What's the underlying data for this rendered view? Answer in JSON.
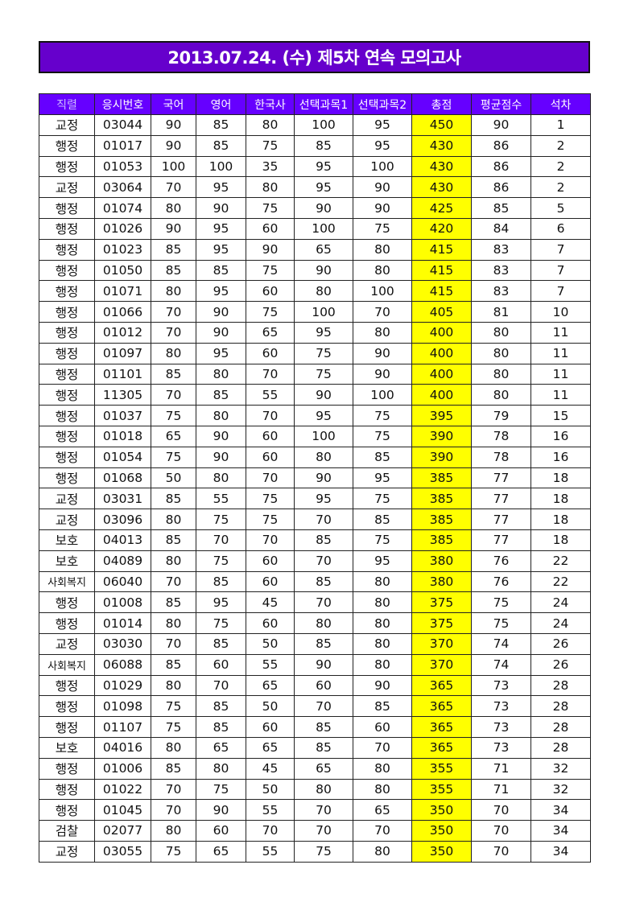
{
  "title": "2013.07.24. (수) 제5차 연속 모의고사",
  "colors": {
    "title_bg": "#6600cc",
    "header_bg": "#6600ff",
    "total_highlight": "#ffff00"
  },
  "columns": [
    "직렬",
    "응시번호",
    "국어",
    "영어",
    "한국사",
    "선택과목1",
    "선택과목2",
    "총점",
    "평균점수",
    "석차"
  ],
  "rows": [
    [
      "교정",
      "03044",
      "90",
      "85",
      "80",
      "100",
      "95",
      "450",
      "90",
      "1"
    ],
    [
      "행정",
      "01017",
      "90",
      "85",
      "75",
      "85",
      "95",
      "430",
      "86",
      "2"
    ],
    [
      "행정",
      "01053",
      "100",
      "100",
      "35",
      "95",
      "100",
      "430",
      "86",
      "2"
    ],
    [
      "교정",
      "03064",
      "70",
      "95",
      "80",
      "95",
      "90",
      "430",
      "86",
      "2"
    ],
    [
      "행정",
      "01074",
      "80",
      "90",
      "75",
      "90",
      "90",
      "425",
      "85",
      "5"
    ],
    [
      "행정",
      "01026",
      "90",
      "95",
      "60",
      "100",
      "75",
      "420",
      "84",
      "6"
    ],
    [
      "행정",
      "01023",
      "85",
      "95",
      "90",
      "65",
      "80",
      "415",
      "83",
      "7"
    ],
    [
      "행정",
      "01050",
      "85",
      "85",
      "75",
      "90",
      "80",
      "415",
      "83",
      "7"
    ],
    [
      "행정",
      "01071",
      "80",
      "95",
      "60",
      "80",
      "100",
      "415",
      "83",
      "7"
    ],
    [
      "행정",
      "01066",
      "70",
      "90",
      "75",
      "100",
      "70",
      "405",
      "81",
      "10"
    ],
    [
      "행정",
      "01012",
      "70",
      "90",
      "65",
      "95",
      "80",
      "400",
      "80",
      "11"
    ],
    [
      "행정",
      "01097",
      "80",
      "95",
      "60",
      "75",
      "90",
      "400",
      "80",
      "11"
    ],
    [
      "행정",
      "01101",
      "85",
      "80",
      "70",
      "75",
      "90",
      "400",
      "80",
      "11"
    ],
    [
      "행정",
      "11305",
      "70",
      "85",
      "55",
      "90",
      "100",
      "400",
      "80",
      "11"
    ],
    [
      "행정",
      "01037",
      "75",
      "80",
      "70",
      "95",
      "75",
      "395",
      "79",
      "15"
    ],
    [
      "행정",
      "01018",
      "65",
      "90",
      "60",
      "100",
      "75",
      "390",
      "78",
      "16"
    ],
    [
      "행정",
      "01054",
      "75",
      "90",
      "60",
      "80",
      "85",
      "390",
      "78",
      "16"
    ],
    [
      "행정",
      "01068",
      "50",
      "80",
      "70",
      "90",
      "95",
      "385",
      "77",
      "18"
    ],
    [
      "교정",
      "03031",
      "85",
      "55",
      "75",
      "95",
      "75",
      "385",
      "77",
      "18"
    ],
    [
      "교정",
      "03096",
      "80",
      "75",
      "75",
      "70",
      "85",
      "385",
      "77",
      "18"
    ],
    [
      "보호",
      "04013",
      "85",
      "70",
      "70",
      "85",
      "75",
      "385",
      "77",
      "18"
    ],
    [
      "보호",
      "04089",
      "80",
      "75",
      "60",
      "70",
      "95",
      "380",
      "76",
      "22"
    ],
    [
      "사회복지",
      "06040",
      "70",
      "85",
      "60",
      "85",
      "80",
      "380",
      "76",
      "22"
    ],
    [
      "행정",
      "01008",
      "85",
      "95",
      "45",
      "70",
      "80",
      "375",
      "75",
      "24"
    ],
    [
      "행정",
      "01014",
      "80",
      "75",
      "60",
      "80",
      "80",
      "375",
      "75",
      "24"
    ],
    [
      "교정",
      "03030",
      "70",
      "85",
      "50",
      "85",
      "80",
      "370",
      "74",
      "26"
    ],
    [
      "사회복지",
      "06088",
      "85",
      "60",
      "55",
      "90",
      "80",
      "370",
      "74",
      "26"
    ],
    [
      "행정",
      "01029",
      "80",
      "70",
      "65",
      "60",
      "90",
      "365",
      "73",
      "28"
    ],
    [
      "행정",
      "01098",
      "75",
      "85",
      "50",
      "70",
      "85",
      "365",
      "73",
      "28"
    ],
    [
      "행정",
      "01107",
      "75",
      "85",
      "60",
      "85",
      "60",
      "365",
      "73",
      "28"
    ],
    [
      "보호",
      "04016",
      "80",
      "65",
      "65",
      "85",
      "70",
      "365",
      "73",
      "28"
    ],
    [
      "행정",
      "01006",
      "85",
      "80",
      "45",
      "65",
      "80",
      "355",
      "71",
      "32"
    ],
    [
      "행정",
      "01022",
      "70",
      "75",
      "50",
      "80",
      "80",
      "355",
      "71",
      "32"
    ],
    [
      "행정",
      "01045",
      "70",
      "90",
      "55",
      "70",
      "65",
      "350",
      "70",
      "34"
    ],
    [
      "검찰",
      "02077",
      "80",
      "60",
      "70",
      "70",
      "70",
      "350",
      "70",
      "34"
    ],
    [
      "교정",
      "03055",
      "75",
      "65",
      "55",
      "75",
      "80",
      "350",
      "70",
      "34"
    ]
  ]
}
